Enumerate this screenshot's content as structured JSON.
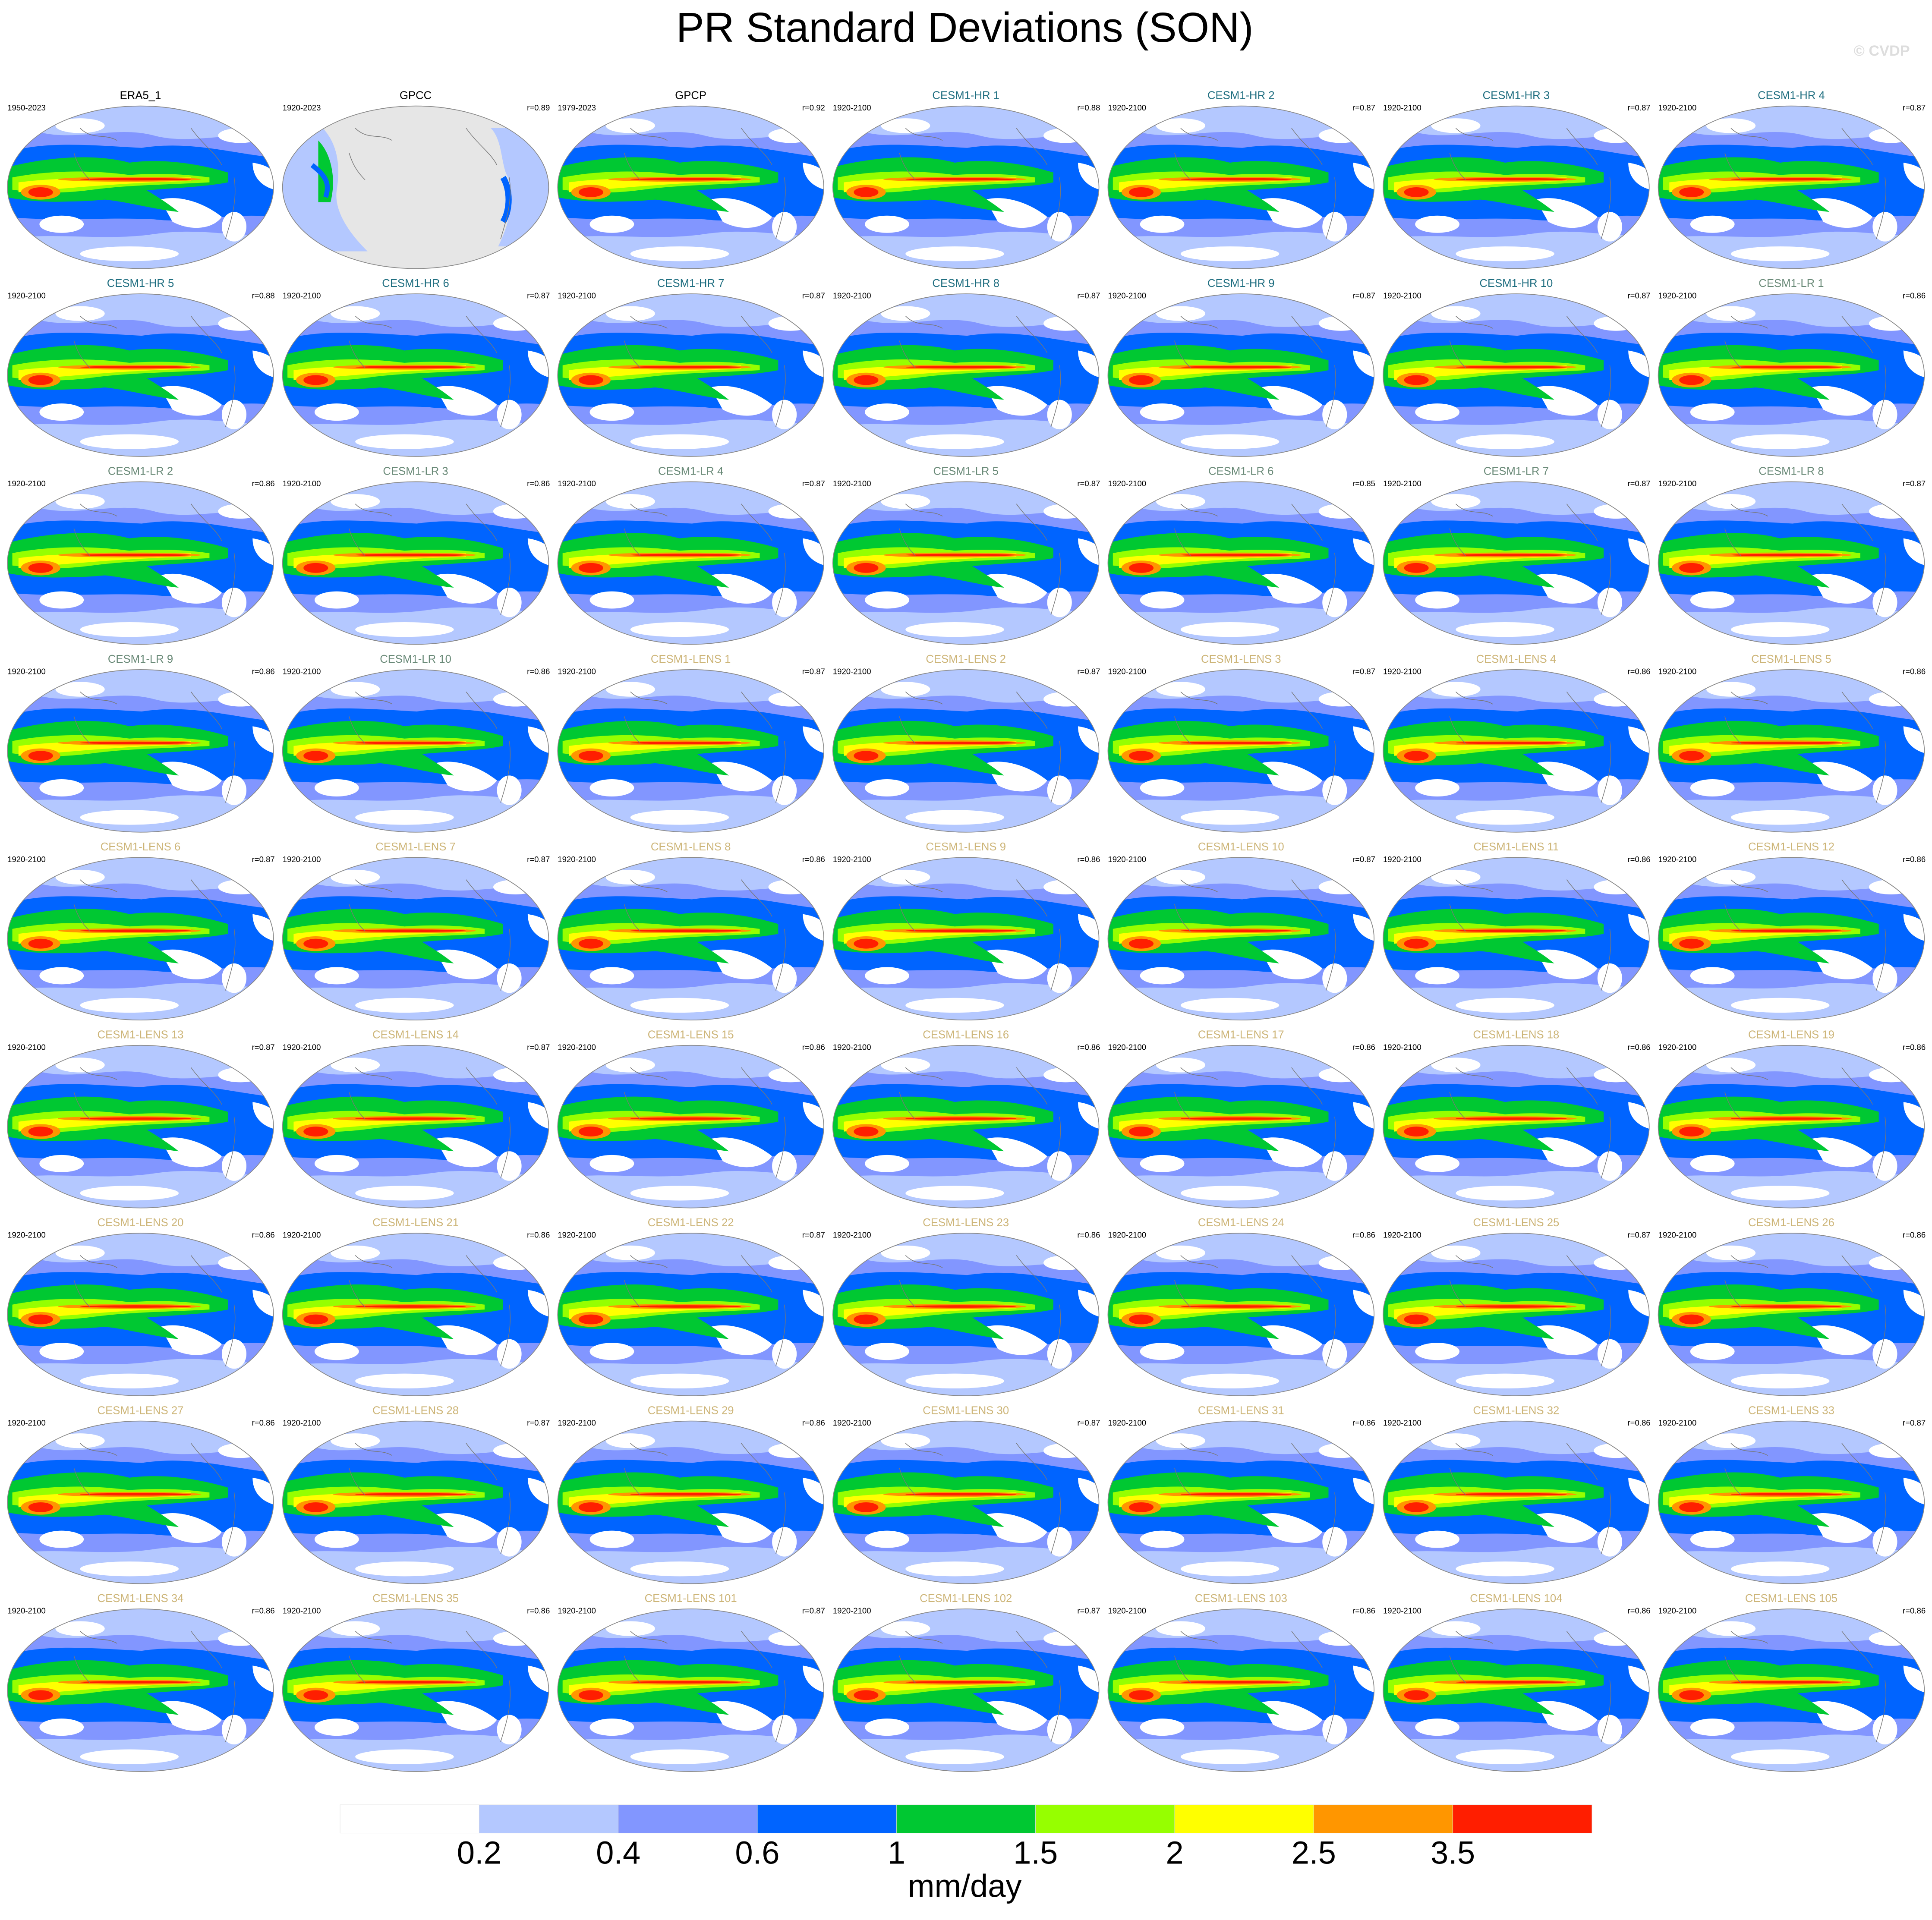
{
  "title": "PR Standard Deviations (SON)",
  "watermark": "© CVDP",
  "panels": [
    {
      "title": "ERA5_1",
      "period": "1950-2023",
      "color": "#000000"
    },
    {
      "title": "GPCC",
      "period": "1920-2023",
      "r": "r=0.89",
      "color": "#000000"
    },
    {
      "title": "GPCP",
      "period": "1979-2023",
      "r": "r=0.92",
      "color": "#000000"
    },
    {
      "title": "CESM1-HR 1",
      "period": "1920-2100",
      "r": "r=0.88",
      "color": "#1f6e80"
    },
    {
      "title": "CESM1-HR 2",
      "period": "1920-2100",
      "r": "r=0.87",
      "color": "#1f6e80"
    },
    {
      "title": "CESM1-HR 3",
      "period": "1920-2100",
      "r": "r=0.87",
      "color": "#1f6e80"
    },
    {
      "title": "CESM1-HR 4",
      "period": "1920-2100",
      "r": "r=0.87",
      "color": "#1f6e80"
    },
    {
      "title": "CESM1-HR 5",
      "period": "1920-2100",
      "r": "r=0.88",
      "color": "#1f6e80"
    },
    {
      "title": "CESM1-HR 6",
      "period": "1920-2100",
      "r": "r=0.87",
      "color": "#1f6e80"
    },
    {
      "title": "CESM1-HR 7",
      "period": "1920-2100",
      "r": "r=0.87",
      "color": "#1f6e80"
    },
    {
      "title": "CESM1-HR 8",
      "period": "1920-2100",
      "r": "r=0.87",
      "color": "#1f6e80"
    },
    {
      "title": "CESM1-HR 9",
      "period": "1920-2100",
      "r": "r=0.87",
      "color": "#1f6e80"
    },
    {
      "title": "CESM1-HR 10",
      "period": "1920-2100",
      "r": "r=0.87",
      "color": "#1f6e80"
    },
    {
      "title": "CESM1-LR 1",
      "period": "1920-2100",
      "r": "r=0.86",
      "color": "#6a8a78"
    },
    {
      "title": "CESM1-LR 2",
      "period": "1920-2100",
      "r": "r=0.86",
      "color": "#6a8a78"
    },
    {
      "title": "CESM1-LR 3",
      "period": "1920-2100",
      "r": "r=0.86",
      "color": "#6a8a78"
    },
    {
      "title": "CESM1-LR 4",
      "period": "1920-2100",
      "r": "r=0.87",
      "color": "#6a8a78"
    },
    {
      "title": "CESM1-LR 5",
      "period": "1920-2100",
      "r": "r=0.87",
      "color": "#6a8a78"
    },
    {
      "title": "CESM1-LR 6",
      "period": "1920-2100",
      "r": "r=0.85",
      "color": "#6a8a78"
    },
    {
      "title": "CESM1-LR 7",
      "period": "1920-2100",
      "r": "r=0.87",
      "color": "#6a8a78"
    },
    {
      "title": "CESM1-LR 8",
      "period": "1920-2100",
      "r": "r=0.87",
      "color": "#6a8a78"
    },
    {
      "title": "CESM1-LR 9",
      "period": "1920-2100",
      "r": "r=0.86",
      "color": "#6a8a78"
    },
    {
      "title": "CESM1-LR 10",
      "period": "1920-2100",
      "r": "r=0.86",
      "color": "#6a8a78"
    },
    {
      "title": "CESM1-LENS 1",
      "period": "1920-2100",
      "r": "r=0.87",
      "color": "#cdb578"
    },
    {
      "title": "CESM1-LENS 2",
      "period": "1920-2100",
      "r": "r=0.87",
      "color": "#cdb578"
    },
    {
      "title": "CESM1-LENS 3",
      "period": "1920-2100",
      "r": "r=0.87",
      "color": "#cdb578"
    },
    {
      "title": "CESM1-LENS 4",
      "period": "1920-2100",
      "r": "r=0.86",
      "color": "#cdb578"
    },
    {
      "title": "CESM1-LENS 5",
      "period": "1920-2100",
      "r": "r=0.86",
      "color": "#cdb578"
    },
    {
      "title": "CESM1-LENS 6",
      "period": "1920-2100",
      "r": "r=0.87",
      "color": "#cdb578"
    },
    {
      "title": "CESM1-LENS 7",
      "period": "1920-2100",
      "r": "r=0.87",
      "color": "#cdb578"
    },
    {
      "title": "CESM1-LENS 8",
      "period": "1920-2100",
      "r": "r=0.86",
      "color": "#cdb578"
    },
    {
      "title": "CESM1-LENS 9",
      "period": "1920-2100",
      "r": "r=0.86",
      "color": "#cdb578"
    },
    {
      "title": "CESM1-LENS 10",
      "period": "1920-2100",
      "r": "r=0.87",
      "color": "#cdb578"
    },
    {
      "title": "CESM1-LENS 11",
      "period": "1920-2100",
      "r": "r=0.86",
      "color": "#cdb578"
    },
    {
      "title": "CESM1-LENS 12",
      "period": "1920-2100",
      "r": "r=0.86",
      "color": "#cdb578"
    },
    {
      "title": "CESM1-LENS 13",
      "period": "1920-2100",
      "r": "r=0.87",
      "color": "#cdb578"
    },
    {
      "title": "CESM1-LENS 14",
      "period": "1920-2100",
      "r": "r=0.87",
      "color": "#cdb578"
    },
    {
      "title": "CESM1-LENS 15",
      "period": "1920-2100",
      "r": "r=0.86",
      "color": "#cdb578"
    },
    {
      "title": "CESM1-LENS 16",
      "period": "1920-2100",
      "r": "r=0.86",
      "color": "#cdb578"
    },
    {
      "title": "CESM1-LENS 17",
      "period": "1920-2100",
      "r": "r=0.86",
      "color": "#cdb578"
    },
    {
      "title": "CESM1-LENS 18",
      "period": "1920-2100",
      "r": "r=0.86",
      "color": "#cdb578"
    },
    {
      "title": "CESM1-LENS 19",
      "period": "1920-2100",
      "r": "r=0.86",
      "color": "#cdb578"
    },
    {
      "title": "CESM1-LENS 20",
      "period": "1920-2100",
      "r": "r=0.86",
      "color": "#cdb578"
    },
    {
      "title": "CESM1-LENS 21",
      "period": "1920-2100",
      "r": "r=0.86",
      "color": "#cdb578"
    },
    {
      "title": "CESM1-LENS 22",
      "period": "1920-2100",
      "r": "r=0.87",
      "color": "#cdb578"
    },
    {
      "title": "CESM1-LENS 23",
      "period": "1920-2100",
      "r": "r=0.86",
      "color": "#cdb578"
    },
    {
      "title": "CESM1-LENS 24",
      "period": "1920-2100",
      "r": "r=0.86",
      "color": "#cdb578"
    },
    {
      "title": "CESM1-LENS 25",
      "period": "1920-2100",
      "r": "r=0.87",
      "color": "#cdb578"
    },
    {
      "title": "CESM1-LENS 26",
      "period": "1920-2100",
      "r": "r=0.86",
      "color": "#cdb578"
    },
    {
      "title": "CESM1-LENS 27",
      "period": "1920-2100",
      "r": "r=0.86",
      "color": "#cdb578"
    },
    {
      "title": "CESM1-LENS 28",
      "period": "1920-2100",
      "r": "r=0.87",
      "color": "#cdb578"
    },
    {
      "title": "CESM1-LENS 29",
      "period": "1920-2100",
      "r": "r=0.86",
      "color": "#cdb578"
    },
    {
      "title": "CESM1-LENS 30",
      "period": "1920-2100",
      "r": "r=0.87",
      "color": "#cdb578"
    },
    {
      "title": "CESM1-LENS 31",
      "period": "1920-2100",
      "r": "r=0.86",
      "color": "#cdb578"
    },
    {
      "title": "CESM1-LENS 32",
      "period": "1920-2100",
      "r": "r=0.86",
      "color": "#cdb578"
    },
    {
      "title": "CESM1-LENS 33",
      "period": "1920-2100",
      "r": "r=0.87",
      "color": "#cdb578"
    },
    {
      "title": "CESM1-LENS 34",
      "period": "1920-2100",
      "r": "r=0.86",
      "color": "#cdb578"
    },
    {
      "title": "CESM1-LENS 35",
      "period": "1920-2100",
      "r": "r=0.86",
      "color": "#cdb578"
    },
    {
      "title": "CESM1-LENS 101",
      "period": "1920-2100",
      "r": "r=0.87",
      "color": "#cdb578"
    },
    {
      "title": "CESM1-LENS 102",
      "period": "1920-2100",
      "r": "r=0.87",
      "color": "#cdb578"
    },
    {
      "title": "CESM1-LENS 103",
      "period": "1920-2100",
      "r": "r=0.86",
      "color": "#cdb578"
    },
    {
      "title": "CESM1-LENS 104",
      "period": "1920-2100",
      "r": "r=0.86",
      "color": "#cdb578"
    },
    {
      "title": "CESM1-LENS 105",
      "period": "1920-2100",
      "r": "r=0.86",
      "color": "#cdb578"
    }
  ],
  "colorbar": {
    "levels": [
      0.2,
      0.4,
      0.6,
      1,
      1.5,
      2,
      2.5,
      3.5
    ],
    "colors": [
      "#ffffff",
      "#b4c8ff",
      "#8296ff",
      "#0064ff",
      "#00c832",
      "#96ff00",
      "#ffff00",
      "#ff9600",
      "#ff1e00"
    ],
    "unit": "mm/day"
  }
}
